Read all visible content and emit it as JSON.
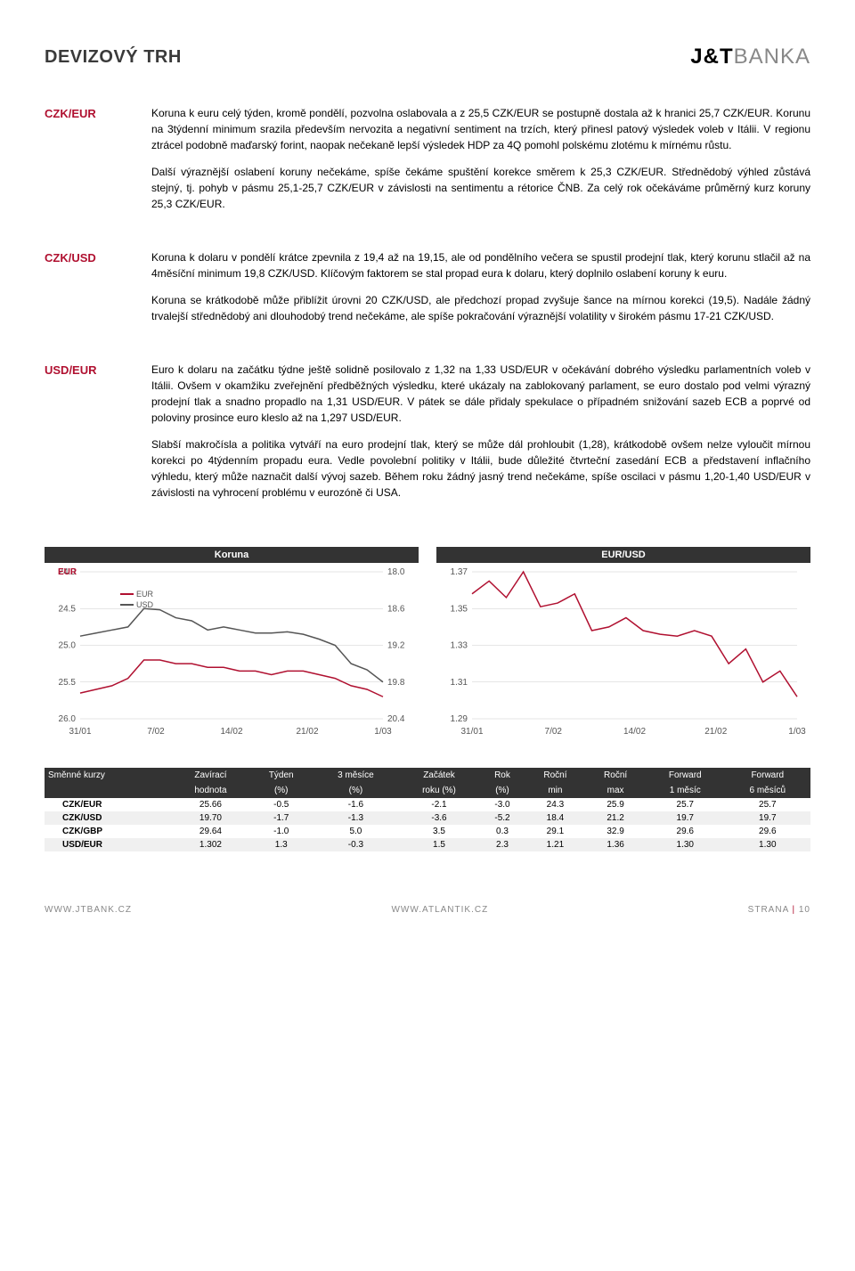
{
  "header": {
    "title": "DEVIZOVÝ TRH",
    "logo_jt": "J&T",
    "logo_banka": "BANKA"
  },
  "sections": [
    {
      "label": "CZK/EUR",
      "paragraphs": [
        "Koruna k euru celý týden, kromě pondělí, pozvolna oslabovala a z 25,5 CZK/EUR se postupně dostala až k hranici 25,7 CZK/EUR. Korunu na 3týdenní minimum srazila především nervozita a negativní sentiment na trzích, který přinesl patový výsledek voleb v Itálii. V regionu ztrácel podobně maďarský forint, naopak nečekaně lepší výsledek HDP za 4Q pomohl polskému zlotému k mírnému růstu.",
        "Další výraznější oslabení koruny nečekáme, spíše čekáme spuštění korekce směrem k 25,3 CZK/EUR. Střednědobý výhled zůstává stejný, tj. pohyb v pásmu 25,1-25,7 CZK/EUR v závislosti na sentimentu a rétorice ČNB. Za celý rok očekáváme průměrný kurz koruny 25,3 CZK/EUR."
      ]
    },
    {
      "label": "CZK/USD",
      "paragraphs": [
        "Koruna k dolaru v pondělí krátce zpevnila z 19,4 až na 19,15, ale od pondělního večera se spustil prodejní tlak, který korunu stlačil až na 4měsíční minimum 19,8 CZK/USD. Klíčovým faktorem se stal propad eura k dolaru, který doplnilo oslabení koruny k euru.",
        "Koruna se krátkodobě může přiblížit úrovni 20 CZK/USD, ale předchozí propad zvyšuje šance na mírnou korekci (19,5). Nadále žádný trvalejší střednědobý ani dlouhodobý trend nečekáme, ale spíše pokračování výraznější volatility v širokém pásmu 17-21 CZK/USD."
      ]
    },
    {
      "label": "USD/EUR",
      "paragraphs": [
        "Euro k dolaru na začátku týdne ještě solidně posilovalo z 1,32 na 1,33 USD/EUR v očekávání dobrého výsledku parlamentních voleb v Itálii. Ovšem v okamžiku zveřejnění předběžných výsledku, které ukázaly na zablokovaný parlament, se euro dostalo pod velmi výrazný prodejní tlak a snadno propadlo na 1,31 USD/EUR. V pátek se dále přidaly spekulace o případném snižování sazeb ECB a poprvé od poloviny prosince euro kleslo až na 1,297 USD/EUR.",
        "Slabší makročísla a politika vytváří na euro prodejní tlak, který se může dál prohloubit (1,28), krátkodobě ovšem nelze vyloučit mírnou korekci po 4týdenním propadu eura. Vedle povolební politiky v Itálii, bude důležité čtvrteční zasedání ECB a představení inflačního výhledu, který může naznačit další vývoj sazeb. Během roku žádný jasný trend nečekáme, spíše oscilaci v pásmu 1,20-1,40 USD/EUR v závislosti na vyhrocení problému v eurozóně či USA."
      ]
    }
  ],
  "chart1": {
    "title": "Koruna",
    "type": "line",
    "left_axis_label": "EUR",
    "right_axis_label": "USD",
    "left_ticks": [
      "24.0",
      "24.5",
      "25.0",
      "25.5",
      "26.0"
    ],
    "right_ticks": [
      "18.0",
      "18.6",
      "19.2",
      "19.8",
      "20.4"
    ],
    "x_ticks": [
      "31/01",
      "7/02",
      "14/02",
      "21/02",
      "1/03"
    ],
    "legend": [
      "EUR",
      "USD"
    ],
    "eur_color": "#b01030",
    "usd_color": "#555555",
    "grid_color": "#cccccc",
    "eur_points": [
      25.65,
      25.6,
      25.55,
      25.45,
      25.2,
      25.2,
      25.25,
      25.25,
      25.3,
      25.3,
      25.35,
      25.35,
      25.4,
      25.35,
      25.35,
      25.4,
      25.45,
      25.55,
      25.6,
      25.7
    ],
    "usd_points": [
      19.05,
      19.0,
      18.95,
      18.9,
      18.6,
      18.62,
      18.75,
      18.8,
      18.95,
      18.9,
      18.95,
      19.0,
      19.0,
      18.98,
      19.02,
      19.1,
      19.2,
      19.5,
      19.6,
      19.8
    ],
    "left_min": 24.0,
    "left_max": 26.0,
    "right_min": 18.0,
    "right_max": 20.4
  },
  "chart2": {
    "title": "EUR/USD",
    "type": "line",
    "y_ticks": [
      "1.37",
      "1.35",
      "1.33",
      "1.31",
      "1.29"
    ],
    "x_ticks": [
      "31/01",
      "7/02",
      "14/02",
      "21/02",
      "1/03"
    ],
    "line_color": "#b01030",
    "grid_color": "#cccccc",
    "points": [
      1.358,
      1.365,
      1.356,
      1.37,
      1.351,
      1.353,
      1.358,
      1.338,
      1.34,
      1.345,
      1.338,
      1.336,
      1.335,
      1.338,
      1.335,
      1.32,
      1.328,
      1.31,
      1.316,
      1.302
    ],
    "y_min": 1.29,
    "y_max": 1.37
  },
  "fx_table": {
    "headers": [
      "Směnné kurzy",
      "Zavírací hodnota",
      "Týden (%)",
      "3 měsíce (%)",
      "Začátek roku (%)",
      "Rok (%)",
      "Roční min",
      "Roční max",
      "Forward 1 měsíc",
      "Forward 6 měsíců"
    ],
    "header_lines": [
      [
        "Směnné kurzy",
        "Zavírací",
        "Týden",
        "3 měsíce",
        "Začátek",
        "Rok",
        "Roční",
        "Roční",
        "Forward",
        "Forward"
      ],
      [
        "",
        "hodnota",
        "(%)",
        "(%)",
        "roku (%)",
        "(%)",
        "min",
        "max",
        "1 měsíc",
        "6 měsíců"
      ]
    ],
    "rows": [
      [
        "CZK/EUR",
        "25.66",
        "-0.5",
        "-1.6",
        "-2.1",
        "-3.0",
        "24.3",
        "25.9",
        "25.7",
        "25.7"
      ],
      [
        "CZK/USD",
        "19.70",
        "-1.7",
        "-1.3",
        "-3.6",
        "-5.2",
        "18.4",
        "21.2",
        "19.7",
        "19.7"
      ],
      [
        "CZK/GBP",
        "29.64",
        "-1.0",
        "5.0",
        "3.5",
        "0.3",
        "29.1",
        "32.9",
        "29.6",
        "29.6"
      ],
      [
        "USD/EUR",
        "1.302",
        "1.3",
        "-0.3",
        "1.5",
        "2.3",
        "1.21",
        "1.36",
        "1.30",
        "1.30"
      ]
    ]
  },
  "footer": {
    "left": "WWW.JTBANK.CZ",
    "center": "WWW.ATLANTIK.CZ",
    "right_label": "STRANA",
    "right_num": "10"
  }
}
